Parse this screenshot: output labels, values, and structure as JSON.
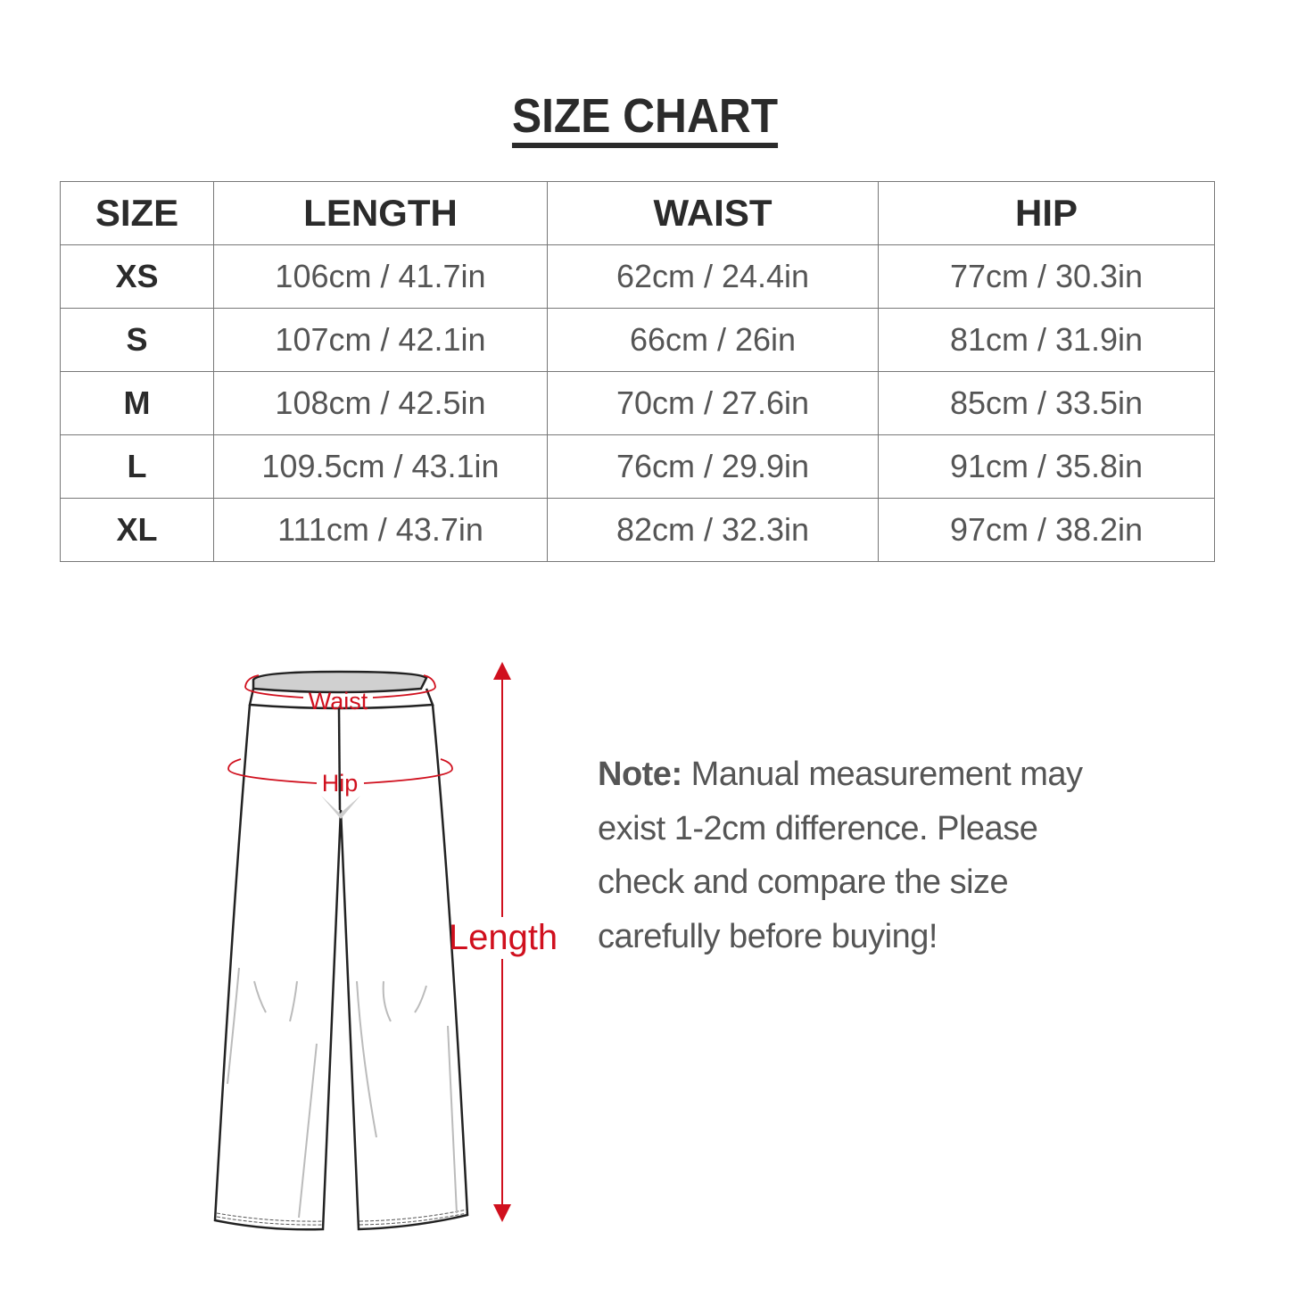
{
  "title": "SIZE CHART",
  "table": {
    "headers": [
      "SIZE",
      "LENGTH",
      "WAIST",
      "HIP"
    ],
    "rows": [
      [
        "XS",
        "106cm / 41.7in",
        "62cm / 24.4in",
        "77cm / 30.3in"
      ],
      [
        "S",
        "107cm / 42.1in",
        "66cm / 26in",
        "81cm / 31.9in"
      ],
      [
        "M",
        "108cm / 42.5in",
        "70cm / 27.6in",
        "85cm / 33.5in"
      ],
      [
        "L",
        "109.5cm / 43.1in",
        "76cm / 29.9in",
        "91cm / 35.8in"
      ],
      [
        "XL",
        "111cm / 43.7in",
        "82cm / 32.3in",
        "97cm / 38.2in"
      ]
    ]
  },
  "diagram": {
    "waist_label": "Waist",
    "hip_label": "Hip",
    "length_label": "Length",
    "accent_color": "#d0101e"
  },
  "note": {
    "label": "Note:",
    "text": " Manual measurement may exist 1-2cm difference. Please check and compare the size carefully before buying!"
  }
}
